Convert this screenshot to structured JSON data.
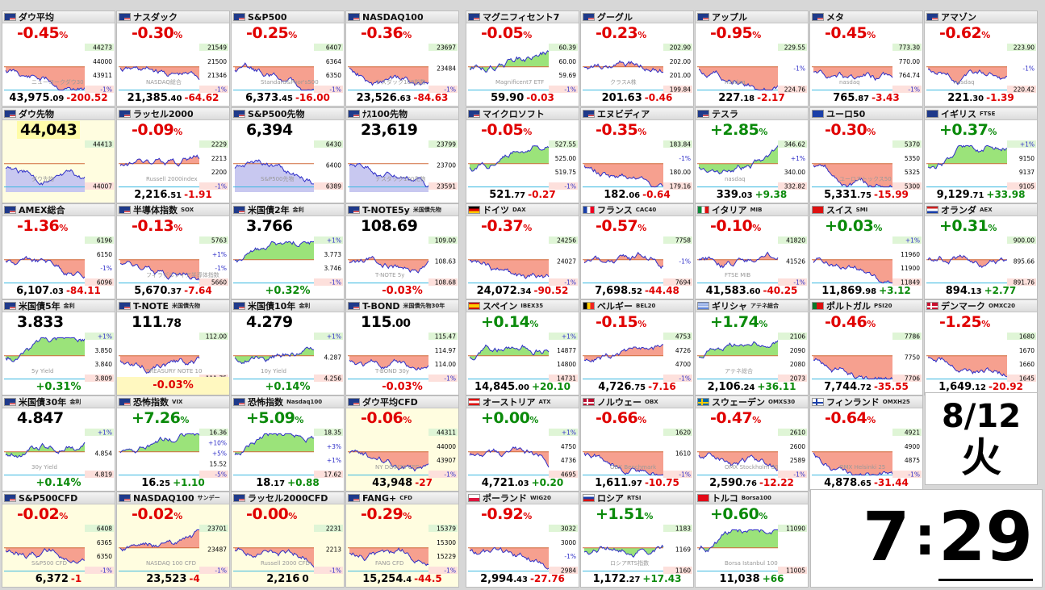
{
  "tiles": [
    {
      "name": "ダウ平均",
      "sub": "",
      "flag": "us",
      "big": "-0.45",
      "pct": true,
      "price": "43,975",
      "price_d": ".09",
      "change": "-200.52",
      "levels": [
        "44273",
        "44000",
        "43911",
        "-1%"
      ],
      "watermark": "ニューヨークダウ30",
      "trend": "down"
    },
    {
      "name": "ナスダック",
      "sub": "",
      "flag": "us",
      "big": "-0.30",
      "pct": true,
      "price": "21,385",
      "price_d": ".40",
      "change": "-64.62",
      "levels": [
        "21549",
        "21500",
        "21346",
        "-1%"
      ],
      "watermark": "NASDAQ総合",
      "trend": "down"
    },
    {
      "name": "S&P500",
      "sub": "",
      "flag": "us",
      "big": "-0.25",
      "pct": true,
      "price": "6,373",
      "price_d": ".45",
      "change": "-16.00",
      "levels": [
        "6407",
        "6364",
        "6350",
        "-1%"
      ],
      "watermark": "Standard&Poor's500",
      "trend": "down"
    },
    {
      "name": "NASDAQ100",
      "sub": "",
      "flag": "us",
      "big": "-0.36",
      "pct": true,
      "price": "23,526",
      "price_d": ".63",
      "change": "-84.63",
      "levels": [
        "23697",
        "23484",
        "-1%"
      ],
      "watermark": "ナスダック100指数",
      "trend": "down"
    },
    {
      "name": "マグニフィセント7",
      "sub": "",
      "flag": "us",
      "big": "-0.05",
      "pct": true,
      "price": "59.90",
      "price_d": "",
      "change": "-0.03",
      "levels": [
        "60.39",
        "60.00",
        "59.69",
        "-1%"
      ],
      "watermark": "Magnificent7 ETF",
      "trend": "up"
    },
    {
      "name": "グーグル",
      "sub": "",
      "flag": "us",
      "big": "-0.23",
      "pct": true,
      "price": "201.63",
      "price_d": "",
      "change": "-0.46",
      "levels": [
        "202.90",
        "202.00",
        "201.00",
        "199.84"
      ],
      "watermark": "クラスA株",
      "trend": "flat"
    },
    {
      "name": "アップル",
      "sub": "",
      "flag": "us",
      "big": "-0.95",
      "pct": true,
      "price": "227",
      "price_d": ".18",
      "change": "-2.17",
      "levels": [
        "229.55",
        "-1%",
        "224.76"
      ],
      "watermark": "nasdaq",
      "trend": "down"
    },
    {
      "name": "メタ",
      "sub": "",
      "flag": "us",
      "big": "-0.45",
      "pct": true,
      "price": "765",
      "price_d": ".87",
      "change": "-3.43",
      "levels": [
        "773.30",
        "770.00",
        "764.74",
        "-1%"
      ],
      "watermark": "nasdaq",
      "trend": "down"
    },
    {
      "name": "アマゾン",
      "sub": "",
      "flag": "us",
      "big": "-0.62",
      "pct": true,
      "price": "221",
      "price_d": ".30",
      "change": "-1.39",
      "levels": [
        "223.90",
        "-1%",
        "220.42"
      ],
      "watermark": "nasdaq",
      "trend": "down"
    },
    {
      "name": "ダウ先物",
      "sub": "",
      "flag": "us",
      "big": "44,043",
      "pct": false,
      "price": "",
      "price_d": "",
      "change": "",
      "levels": [
        "44413",
        "44007"
      ],
      "watermark": "ダウ先物",
      "trend": "down",
      "hl": true,
      "fill": "blue"
    },
    {
      "name": "ラッセル2000",
      "sub": "",
      "flag": "us",
      "big": "-0.09",
      "pct": true,
      "price": "2,216",
      "price_d": ".51",
      "change": "-1.91",
      "levels": [
        "2229",
        "2213",
        "2200",
        "-1%"
      ],
      "watermark": "Russell 2000index",
      "trend": "flat"
    },
    {
      "name": "S&P500先物",
      "sub": "",
      "flag": "us",
      "big": "6,394",
      "pct": false,
      "price": "",
      "price_d": "",
      "change": "",
      "levels": [
        "6430",
        "6400",
        "6389"
      ],
      "watermark": "S&P500先物",
      "trend": "down",
      "fill": "blue"
    },
    {
      "name": "ﾅｽ100先物",
      "sub": "",
      "flag": "us",
      "big": "23,619",
      "pct": false,
      "price": "",
      "price_d": "",
      "change": "",
      "levels": [
        "23799",
        "23700",
        "23591"
      ],
      "watermark": "ナスダック100先物",
      "trend": "down",
      "fill": "blue"
    },
    {
      "name": "マイクロソフト",
      "sub": "",
      "flag": "us",
      "big": "-0.05",
      "pct": true,
      "price": "521",
      "price_d": ".77",
      "change": "-0.27",
      "levels": [
        "527.55",
        "525.00",
        "519.75",
        "-1%"
      ],
      "watermark": "",
      "trend": "up"
    },
    {
      "name": "エヌビディア",
      "sub": "",
      "flag": "us",
      "big": "-0.35",
      "pct": true,
      "price": "182",
      "price_d": ".06",
      "change": "-0.64",
      "levels": [
        "183.84",
        "-1%",
        "180.00",
        "179.16"
      ],
      "watermark": "",
      "trend": "down"
    },
    {
      "name": "テスラ",
      "sub": "",
      "flag": "us",
      "big": "+2.85",
      "pct": true,
      "price": "339",
      "price_d": ".03",
      "change": "+9.38",
      "levels": [
        "346.62",
        "+1%",
        "340.00",
        "332.82"
      ],
      "watermark": "nasdaq",
      "trend": "up"
    },
    {
      "name": "ユーロ50",
      "sub": "",
      "flag": "eu",
      "big": "-0.30",
      "pct": true,
      "price": "5,331",
      "price_d": ".75",
      "change": "-15.99",
      "levels": [
        "5370",
        "5350",
        "5325",
        "5300"
      ],
      "watermark": "ユーロストックス50",
      "trend": "down"
    },
    {
      "name": "イギリス",
      "sub": "FTSE",
      "flag": "uk",
      "big": "+0.37",
      "pct": true,
      "price": "9,129",
      "price_d": ".71",
      "change": "+33.98",
      "levels": [
        "+1%",
        "9150",
        "9137",
        "9105"
      ],
      "watermark": "",
      "trend": "up"
    },
    {
      "name": "AMEX総合",
      "sub": "",
      "flag": "us",
      "big": "-1.36",
      "pct": true,
      "price": "6,107",
      "price_d": ".03",
      "change": "-84.11",
      "levels": [
        "6196",
        "6150",
        "-1%",
        "6096"
      ],
      "watermark": "",
      "trend": "down"
    },
    {
      "name": "半導体指数",
      "sub": "SOX",
      "flag": "us",
      "big": "-0.13",
      "pct": true,
      "price": "5,670",
      "price_d": ".37",
      "change": "-7.64",
      "levels": [
        "5763",
        "+1%",
        "-1%",
        "5660"
      ],
      "watermark": "フィラデルフィア半導体指数",
      "trend": "down"
    },
    {
      "name": "米国債2年",
      "sub": "金利",
      "flag": "us",
      "big": "3.766",
      "pct": false,
      "price": "",
      "price_d": "",
      "change": "+0.32%",
      "levels": [
        "+1%",
        "3.773",
        "3.746",
        "-1%"
      ],
      "watermark": "",
      "trend": "up"
    },
    {
      "name": "T-NOTE5y",
      "sub": "米国債先物",
      "flag": "us",
      "big": "108.69",
      "pct": false,
      "price": "",
      "price_d": "",
      "change": "-0.03%",
      "levels": [
        "109.00",
        "108.63",
        "108.68"
      ],
      "watermark": "T-NOTE 5y",
      "trend": "flat"
    },
    {
      "name": "ドイツ",
      "sub": "DAX",
      "flag": "de",
      "big": "-0.37",
      "pct": true,
      "price": "24,072",
      "price_d": ".34",
      "change": "-90.52",
      "levels": [
        "24256",
        "24027",
        "-1%"
      ],
      "watermark": "",
      "trend": "down"
    },
    {
      "name": "フランス",
      "sub": "CAC40",
      "flag": "fr",
      "big": "-0.57",
      "pct": true,
      "price": "7,698",
      "price_d": ".52",
      "change": "-44.48",
      "levels": [
        "7758",
        "-1%",
        "7694"
      ],
      "watermark": "",
      "trend": "down"
    },
    {
      "name": "イタリア",
      "sub": "MIB",
      "flag": "it",
      "big": "-0.10",
      "pct": true,
      "price": "41,583",
      "price_d": ".60",
      "change": "-40.25",
      "levels": [
        "41820",
        "41526",
        "-1%"
      ],
      "watermark": "FTSE MIB",
      "trend": "flat"
    },
    {
      "name": "スイス",
      "sub": "SMI",
      "flag": "ch",
      "big": "+0.03",
      "pct": true,
      "price": "11,869",
      "price_d": ".98",
      "change": "+3.12",
      "levels": [
        "+1%",
        "11960",
        "11900",
        "11849"
      ],
      "watermark": "",
      "trend": "down"
    },
    {
      "name": "オランダ",
      "sub": "AEX",
      "flag": "nl",
      "big": "+0.31",
      "pct": true,
      "price": "894",
      "price_d": ".13",
      "change": "+2.77",
      "levels": [
        "900.00",
        "895.66",
        "891.76"
      ],
      "watermark": "",
      "trend": "flat"
    },
    {
      "name": "米国債5年",
      "sub": "金利",
      "flag": "us",
      "big": "3.833",
      "pct": false,
      "price": "",
      "price_d": "",
      "change": "+0.31%",
      "levels": [
        "+1%",
        "3.850",
        "3.840",
        "3.809"
      ],
      "watermark": "5y Yield",
      "trend": "up"
    },
    {
      "name": "T-NOTE",
      "sub": "米国債先物",
      "flag": "us",
      "big": "111",
      "big_d": ".78",
      "pct": false,
      "price": "",
      "price_d": "",
      "change": "-0.03%",
      "levels": [
        "112.00",
        "111.75"
      ],
      "watermark": "TREASURY NOTE 10",
      "trend": "flat",
      "hl_bottom": true
    },
    {
      "name": "米国債10年",
      "sub": "金利",
      "flag": "us",
      "big": "4.279",
      "pct": false,
      "price": "",
      "price_d": "",
      "change": "+0.14%",
      "levels": [
        "+1%",
        "4.287",
        "4.256"
      ],
      "watermark": "10y Yield",
      "trend": "up"
    },
    {
      "name": "T-BOND",
      "sub": "米国債先物30年",
      "flag": "us",
      "big": "115",
      "big_d": ".00",
      "pct": false,
      "price": "",
      "price_d": "",
      "change": "-0.03%",
      "levels": [
        "115.47",
        "114.97",
        "114.00",
        "-1%"
      ],
      "watermark": "T-BOND 30y",
      "trend": "flat"
    },
    {
      "name": "スペイン",
      "sub": "IBEX35",
      "flag": "es",
      "big": "+0.14",
      "pct": true,
      "price": "14,845",
      "price_d": ".00",
      "change": "+20.10",
      "levels": [
        "+1%",
        "14877",
        "14800",
        "14731"
      ],
      "watermark": "",
      "trend": "up"
    },
    {
      "name": "ベルギー",
      "sub": "BEL20",
      "flag": "be",
      "big": "-0.15",
      "pct": true,
      "price": "4,726",
      "price_d": ".75",
      "change": "-7.16",
      "levels": [
        "4753",
        "4726",
        "4700",
        "-1%"
      ],
      "watermark": "",
      "trend": "flat"
    },
    {
      "name": "ギリシャ",
      "sub": "アテネ総合",
      "flag": "gr",
      "big": "+1.74",
      "pct": true,
      "price": "2,106",
      "price_d": ".24",
      "change": "+36.11",
      "levels": [
        "2106",
        "2090",
        "2080",
        "2073"
      ],
      "watermark": "アテネ総合",
      "trend": "up"
    },
    {
      "name": "ポルトガル",
      "sub": "PSI20",
      "flag": "pt",
      "big": "-0.46",
      "pct": true,
      "price": "7,744",
      "price_d": ".72",
      "change": "-35.55",
      "levels": [
        "7786",
        "7750",
        "7706"
      ],
      "watermark": "",
      "trend": "down"
    },
    {
      "name": "デンマーク",
      "sub": "OMXC20",
      "flag": "dk",
      "big": "-1.25",
      "pct": true,
      "price": "1,649",
      "price_d": ".12",
      "change": "-20.92",
      "levels": [
        "1680",
        "1670",
        "1660",
        "1645"
      ],
      "watermark": "",
      "trend": "down"
    },
    {
      "name": "米国債30年",
      "sub": "金利",
      "flag": "us",
      "big": "4.847",
      "pct": false,
      "price": "",
      "price_d": "",
      "change": "+0.14%",
      "levels": [
        "+1%",
        "4.854",
        "4.819"
      ],
      "watermark": "30y Yield",
      "trend": "up"
    },
    {
      "name": "恐怖指数",
      "sub": "VIX",
      "flag": "us",
      "big": "+7.26",
      "pct": true,
      "price": "16",
      "price_d": ".25",
      "change": "+1.10",
      "levels": [
        "16.36",
        "+10%",
        "+5%",
        "15.52",
        "-5%"
      ],
      "watermark": "",
      "trend": "up"
    },
    {
      "name": "恐怖指数",
      "sub": "Nasdaq100",
      "flag": "us",
      "big": "+5.09",
      "pct": true,
      "price": "18",
      "price_d": ".17",
      "change": "+0.88",
      "levels": [
        "18.35",
        "+3%",
        "+1%",
        "17.62"
      ],
      "watermark": "",
      "trend": "up"
    },
    {
      "name": "ダウ平均CFD",
      "sub": "",
      "flag": "us",
      "big": "-0.06",
      "pct": true,
      "price": "43,948",
      "price_d": "",
      "change": "-27",
      "levels": [
        "44311",
        "44000",
        "43907",
        "-1%"
      ],
      "watermark": "NY DOW30 CFD",
      "trend": "down",
      "hl": true
    },
    {
      "name": "オーストリア",
      "sub": "ATX",
      "flag": "at",
      "big": "+0.00",
      "pct": true,
      "price": "4,721",
      "price_d": ".03",
      "change": "+0.20",
      "levels": [
        "+1%",
        "4750",
        "4736",
        "4695"
      ],
      "watermark": "",
      "trend": "down"
    },
    {
      "name": "ノルウェー",
      "sub": "OBX",
      "flag": "no",
      "big": "-0.66",
      "pct": true,
      "price": "1,611",
      "price_d": ".97",
      "change": "-10.75",
      "levels": [
        "1620",
        "1610",
        "-1%"
      ],
      "watermark": "OBX Benchmark",
      "trend": "down"
    },
    {
      "name": "スウェーデン",
      "sub": "OMXS30",
      "flag": "se",
      "big": "-0.47",
      "pct": true,
      "price": "2,590",
      "price_d": ".76",
      "change": "-12.22",
      "levels": [
        "2610",
        "2600",
        "2589",
        "-1%"
      ],
      "watermark": "OMX Stockholm 30",
      "trend": "down"
    },
    {
      "name": "フィンランド",
      "sub": "OMXH25",
      "flag": "fi",
      "big": "-0.64",
      "pct": true,
      "price": "4,878",
      "price_d": ".65",
      "change": "-31.44",
      "levels": [
        "4921",
        "4900",
        "4875",
        "-1%"
      ],
      "watermark": "OMX Helsinki 25",
      "trend": "down"
    },
    {
      "name": "S&P500CFD",
      "sub": "",
      "flag": "us",
      "big": "-0.02",
      "pct": true,
      "price": "6,372",
      "price_d": "",
      "change": "-1",
      "levels": [
        "6408",
        "6365",
        "6350",
        "-1%"
      ],
      "watermark": "S&P500 CFD",
      "trend": "flat",
      "hl": true
    },
    {
      "name": "NASDAQ100",
      "sub": "サンデー",
      "flag": "us",
      "big": "-0.02",
      "pct": true,
      "price": "23,523",
      "price_d": "",
      "change": "-4",
      "levels": [
        "23701",
        "23487",
        "-1%"
      ],
      "watermark": "NASDAQ 100 CFD",
      "trend": "flat",
      "hl": true
    },
    {
      "name": "ラッセル2000CFD",
      "sub": "",
      "flag": "us",
      "big": "-0.00",
      "pct": true,
      "price": "2,216",
      "price_d": "",
      "change": "0",
      "change_neutral": true,
      "levels": [
        "2231",
        "2213",
        "-1%"
      ],
      "watermark": "Russell 2000 CFD",
      "trend": "flat",
      "hl": true
    },
    {
      "name": "FANG+",
      "sub": "CFD",
      "flag": "us",
      "big": "-0.29",
      "pct": true,
      "price": "15,254",
      "price_d": ".4",
      "change": "-44.5",
      "levels": [
        "15379",
        "15300",
        "15229",
        "-1%"
      ],
      "watermark": "FANG CFD",
      "trend": "down",
      "hl": true
    },
    {
      "name": "ポーランド",
      "sub": "WIG20",
      "flag": "pl",
      "big": "-0.92",
      "pct": true,
      "price": "2,994",
      "price_d": ".43",
      "change": "-27.76",
      "levels": [
        "3032",
        "3000",
        "-1%",
        "2984"
      ],
      "watermark": "",
      "trend": "down"
    },
    {
      "name": "ロシア",
      "sub": "RTSI",
      "flag": "ru",
      "big": "+1.51",
      "pct": true,
      "price": "1,172",
      "price_d": ".27",
      "change": "+17.43",
      "levels": [
        "1183",
        "1169",
        "1160"
      ],
      "watermark": "ロシアRTS指数",
      "trend": "up"
    },
    {
      "name": "トルコ",
      "sub": "Borsa100",
      "flag": "tr",
      "big": "+0.60",
      "pct": true,
      "price": "11,038",
      "price_d": "",
      "change": "+66",
      "levels": [
        "11090",
        "11005"
      ],
      "watermark": "Borsa Istanbul 100",
      "trend": "up"
    }
  ],
  "date": {
    "md": "8/12",
    "weekday": "火"
  },
  "clock": {
    "hour": "7",
    "sep": ":",
    "minute": "29"
  },
  "colors": {
    "neg": "#e00000",
    "pos": "#0a8a0a",
    "fill_up": "#9be37a",
    "fill_down": "#f6a08f",
    "fill_blue": "#c8c8f0",
    "line": "#2e2ec8"
  }
}
